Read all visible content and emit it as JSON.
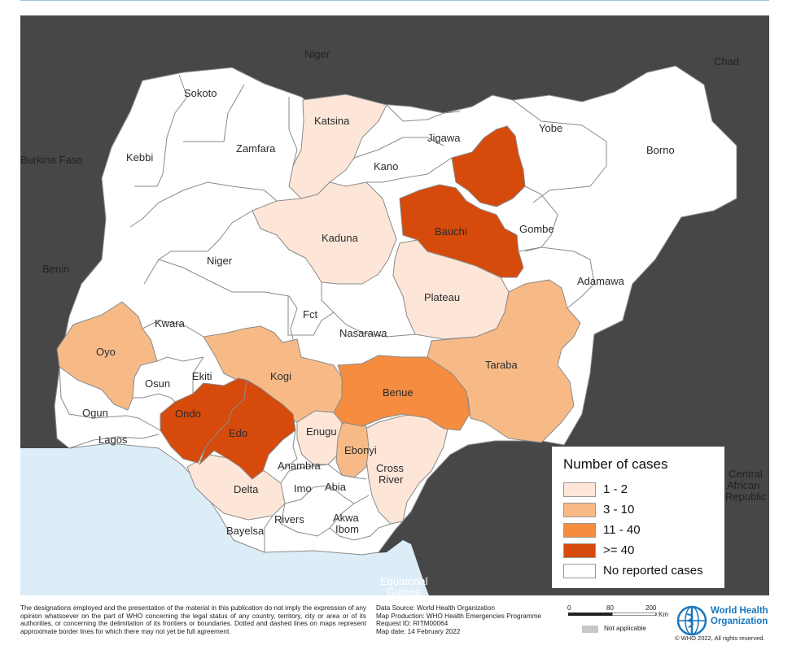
{
  "colors": {
    "background_countries": "#474747",
    "sea": "#dcedf8",
    "no_cases": "#ffffff",
    "c1_2": "#fde6d8",
    "c3_10": "#f7ba87",
    "c11_40": "#f58c3f",
    "c40plus": "#d64a0c",
    "who_blue": "#1a76bd"
  },
  "countries": {
    "niger": "Niger",
    "chad": "Chad",
    "burkina": "Burkina Faso",
    "benin": "Benin",
    "car1": "Central",
    "car2": "African",
    "car3": "Republic",
    "eqg1": "Equatorial",
    "eqg2": "Guinea"
  },
  "states": {
    "sokoto": "Sokoto",
    "katsina": "Katsina",
    "jigawa": "Jigawa",
    "yobe": "Yobe",
    "borno": "Borno",
    "kebbi": "Kebbi",
    "zamfara": "Zamfara",
    "kano": "Kano",
    "bauchi": "Bauchi",
    "gombe": "Gombe",
    "kaduna": "Kaduna",
    "niger": "Niger",
    "adamawa": "Adamawa",
    "plateau": "Plateau",
    "fct": "Fct",
    "kwara": "Kwara",
    "nasarawa": "Nasarawa",
    "oyo": "Oyo",
    "taraba": "Taraba",
    "kogi": "Kogi",
    "osun": "Osun",
    "ekiti": "Ekiti",
    "benue": "Benue",
    "ogun": "Ogun",
    "ondo": "Ondo",
    "edo": "Edo",
    "lagos": "Lagos",
    "enugu": "Enugu",
    "ebonyi": "Ebonyi",
    "anambra": "Anambra",
    "cross1": "Cross",
    "cross2": "River",
    "imo": "Imo",
    "abia": "Abia",
    "delta": "Delta",
    "rivers": "Rivers",
    "akwa1": "Akwa",
    "akwa2": "Ibom",
    "bayelsa": "Bayelsa"
  },
  "legend": {
    "title": "Number of cases",
    "items": [
      {
        "label": "1 - 2",
        "color": "#fde6d8"
      },
      {
        "label": "3 - 10",
        "color": "#f7ba87"
      },
      {
        "label": "11 - 40",
        "color": "#f58c3f"
      },
      {
        "label": ">= 40",
        "color": "#d64a0c"
      },
      {
        "label": "No reported cases",
        "color": "#ffffff"
      }
    ]
  },
  "footer": {
    "disclaimer": "The designations employed and the presentation of the material in this publication do not imply the expression of any opinion whatsoever on the part of WHO concerning the legal status of any country, territory, city or area or of its authorities, or concerning the delimitation of its frontiers or boundaries. Dotted and dashed lines on maps represent approximate border lines for which there may not yet be full agreement.",
    "data_source": "Data Source: World Health Organization",
    "map_production": "Map Production: WHO Health Emergencies Programme",
    "request_id": "Request ID: RITM00064",
    "map_date": "Map date: 14 February 2022",
    "scale": {
      "zero": "0",
      "mid": "80",
      "max": "200",
      "unit": "Km"
    },
    "not_applicable": "Not applicable",
    "who_name_line1": "World Health",
    "who_name_line2": "Organization",
    "copyright": "© WHO  2022,  All rights reserved."
  }
}
